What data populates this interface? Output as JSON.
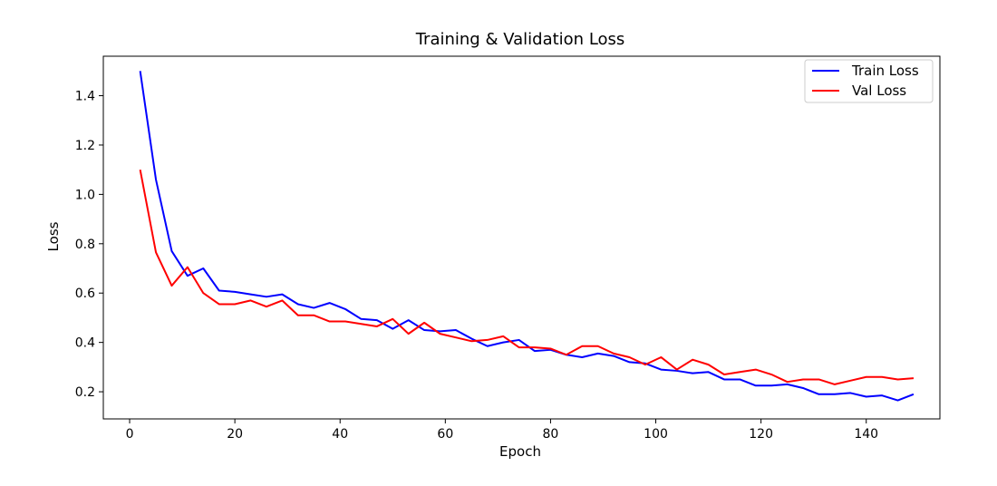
{
  "chart_data": {
    "type": "line",
    "title": "Training & Validation Loss",
    "xlabel": "Epoch",
    "ylabel": "Loss",
    "xlim": [
      -5,
      154
    ],
    "ylim": [
      0.09,
      1.56
    ],
    "xticks": [
      0,
      20,
      40,
      60,
      80,
      100,
      120,
      140
    ],
    "yticks": [
      0.2,
      0.4,
      0.6,
      0.8,
      1.0,
      1.2,
      1.4
    ],
    "grid": false,
    "legend_position": "top-right",
    "x": [
      2,
      5,
      8,
      11,
      14,
      17,
      20,
      23,
      26,
      29,
      32,
      35,
      38,
      41,
      44,
      47,
      50,
      53,
      56,
      59,
      62,
      65,
      68,
      71,
      74,
      77,
      80,
      83,
      86,
      89,
      92,
      95,
      98,
      101,
      104,
      107,
      110,
      113,
      116,
      119,
      122,
      125,
      128,
      131,
      134,
      137,
      140,
      143,
      146,
      149
    ],
    "series": [
      {
        "name": "Train Loss",
        "color": "#0000ff",
        "values": [
          1.5,
          1.06,
          0.77,
          0.67,
          0.7,
          0.61,
          0.605,
          0.595,
          0.585,
          0.595,
          0.555,
          0.54,
          0.56,
          0.535,
          0.495,
          0.49,
          0.455,
          0.49,
          0.45,
          0.445,
          0.45,
          0.415,
          0.385,
          0.4,
          0.41,
          0.365,
          0.37,
          0.35,
          0.34,
          0.355,
          0.345,
          0.32,
          0.315,
          0.29,
          0.285,
          0.275,
          0.28,
          0.25,
          0.25,
          0.225,
          0.225,
          0.23,
          0.215,
          0.19,
          0.19,
          0.195,
          0.18,
          0.185,
          0.165,
          0.19
        ]
      },
      {
        "name": "Val Loss",
        "color": "#ff0000",
        "values": [
          1.1,
          0.765,
          0.63,
          0.705,
          0.6,
          0.555,
          0.555,
          0.57,
          0.545,
          0.57,
          0.51,
          0.51,
          0.485,
          0.485,
          0.475,
          0.465,
          0.495,
          0.435,
          0.48,
          0.435,
          0.42,
          0.405,
          0.41,
          0.425,
          0.38,
          0.38,
          0.375,
          0.35,
          0.385,
          0.385,
          0.355,
          0.34,
          0.31,
          0.34,
          0.29,
          0.33,
          0.31,
          0.27,
          0.28,
          0.29,
          0.27,
          0.24,
          0.25,
          0.25,
          0.23,
          0.245,
          0.26,
          0.26,
          0.25,
          0.255
        ]
      }
    ]
  }
}
